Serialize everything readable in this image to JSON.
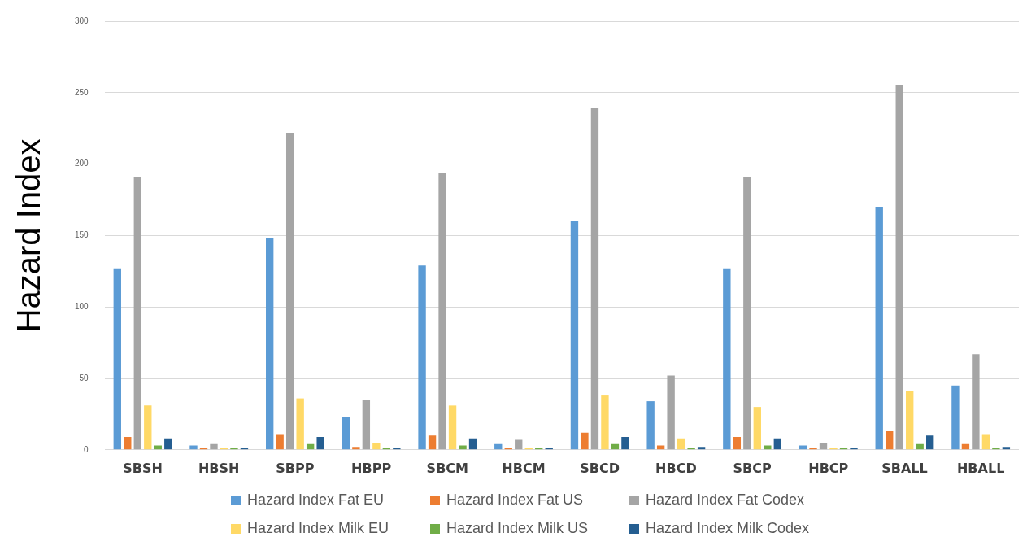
{
  "chart_data": {
    "type": "bar",
    "ylabel": "Hazard Index",
    "categories": [
      "SBSH",
      "HBSH",
      "SBPP",
      "HBPP",
      "SBCM",
      "HBCM",
      "SBCD",
      "HBCD",
      "SBCP",
      "HBCP",
      "SBALL",
      "HBALL"
    ],
    "series": [
      {
        "name": "Hazard Index Fat EU",
        "color": "#5b9bd5",
        "values": [
          127,
          3,
          148,
          23,
          129,
          4,
          160,
          34,
          127,
          3,
          170,
          45
        ]
      },
      {
        "name": "Hazard Index Fat US",
        "color": "#ed7d31",
        "values": [
          9,
          1,
          11,
          2,
          10,
          1,
          12,
          3,
          9,
          1,
          13,
          4
        ]
      },
      {
        "name": "Hazard Index Fat Codex",
        "color": "#a5a5a5",
        "values": [
          191,
          4,
          222,
          35,
          194,
          7,
          239,
          52,
          191,
          5,
          255,
          67
        ]
      },
      {
        "name": "Hazard Index Milk EU",
        "color": "#ffd966",
        "values": [
          31,
          1,
          36,
          5,
          31,
          1,
          38,
          8,
          30,
          1,
          41,
          11
        ]
      },
      {
        "name": "Hazard Index Milk US",
        "color": "#70ad47",
        "values": [
          3,
          1,
          4,
          1,
          3,
          1,
          4,
          1,
          3,
          1,
          4,
          1
        ]
      },
      {
        "name": "Hazard Index Milk Codex",
        "color": "#255e91",
        "values": [
          8,
          1,
          9,
          1,
          8,
          1,
          9,
          2,
          8,
          1,
          10,
          2
        ]
      }
    ],
    "ylim": [
      0,
      300
    ],
    "yticks": [
      0,
      50,
      100,
      150,
      200,
      250,
      300
    ],
    "grid": "y",
    "legend": "bottom"
  }
}
